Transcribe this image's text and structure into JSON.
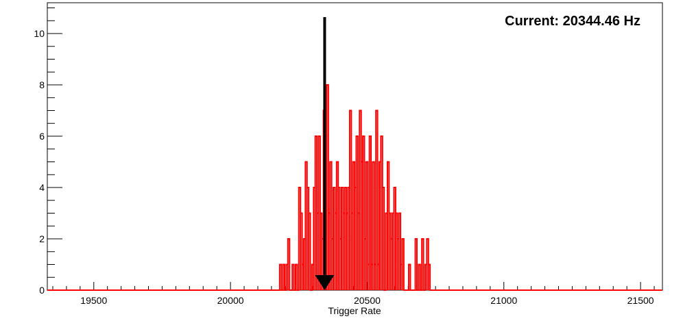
{
  "chart_data": {
    "type": "histogram",
    "xlabel": "Trigger Rate",
    "ylabel": "",
    "xlim": [
      19330,
      21580
    ],
    "ylim": [
      0,
      11.2
    ],
    "grid": false,
    "x_ticks": [
      19500,
      20000,
      20500,
      21000,
      21500
    ],
    "y_ticks": [
      0,
      2,
      4,
      6,
      8,
      10
    ],
    "series": [
      {
        "color": "#ff0000",
        "bins": [
          [
            20180,
            1
          ],
          [
            20186,
            0
          ],
          [
            20192,
            1
          ],
          [
            20198,
            0
          ],
          [
            20204,
            1
          ],
          [
            20210,
            2
          ],
          [
            20226,
            1
          ],
          [
            20232,
            0
          ],
          [
            20238,
            1
          ],
          [
            20244,
            0
          ],
          [
            20250,
            4
          ],
          [
            20256,
            3
          ],
          [
            20262,
            1
          ],
          [
            20268,
            2
          ],
          [
            20274,
            5
          ],
          [
            20280,
            4
          ],
          [
            20286,
            3
          ],
          [
            20292,
            0
          ],
          [
            20298,
            1
          ],
          [
            20304,
            4
          ],
          [
            20310,
            6
          ],
          [
            20316,
            3
          ],
          [
            20322,
            6
          ],
          [
            20328,
            3
          ],
          [
            20334,
            2
          ],
          [
            20340,
            7
          ],
          [
            20346,
            2
          ],
          [
            20352,
            8
          ],
          [
            20358,
            3
          ],
          [
            20364,
            5
          ],
          [
            20370,
            2
          ],
          [
            20376,
            4
          ],
          [
            20382,
            3
          ],
          [
            20388,
            5
          ],
          [
            20394,
            4
          ],
          [
            20400,
            2
          ],
          [
            20406,
            4
          ],
          [
            20412,
            3
          ],
          [
            20418,
            4
          ],
          [
            20424,
            3
          ],
          [
            20430,
            4
          ],
          [
            20436,
            7
          ],
          [
            20442,
            3
          ],
          [
            20448,
            5
          ],
          [
            20454,
            4
          ],
          [
            20460,
            6
          ],
          [
            20466,
            3
          ],
          [
            20472,
            7
          ],
          [
            20478,
            5
          ],
          [
            20484,
            6
          ],
          [
            20490,
            2
          ],
          [
            20496,
            5
          ],
          [
            20502,
            1
          ],
          [
            20508,
            6
          ],
          [
            20514,
            1
          ],
          [
            20520,
            5
          ],
          [
            20526,
            1
          ],
          [
            20532,
            7
          ],
          [
            20538,
            1
          ],
          [
            20544,
            5
          ],
          [
            20550,
            6
          ],
          [
            20556,
            4
          ],
          [
            20562,
            0
          ],
          [
            20568,
            3
          ],
          [
            20574,
            5
          ],
          [
            20580,
            3
          ],
          [
            20586,
            2
          ],
          [
            20592,
            3
          ],
          [
            20598,
            4
          ],
          [
            20604,
            3
          ],
          [
            20610,
            2
          ],
          [
            20616,
            3
          ],
          [
            20622,
            1
          ],
          [
            20628,
            2
          ],
          [
            20652,
            1
          ],
          [
            20676,
            2
          ],
          [
            20682,
            0
          ],
          [
            20688,
            1
          ],
          [
            20694,
            0
          ],
          [
            20700,
            2
          ],
          [
            20706,
            0
          ],
          [
            20712,
            1
          ],
          [
            20718,
            2
          ],
          [
            20724,
            1
          ]
        ],
        "bin_width": 6
      }
    ],
    "annotations": {
      "current_label": "Current: 20344.46 Hz",
      "arrow_x": 20344.46
    }
  }
}
